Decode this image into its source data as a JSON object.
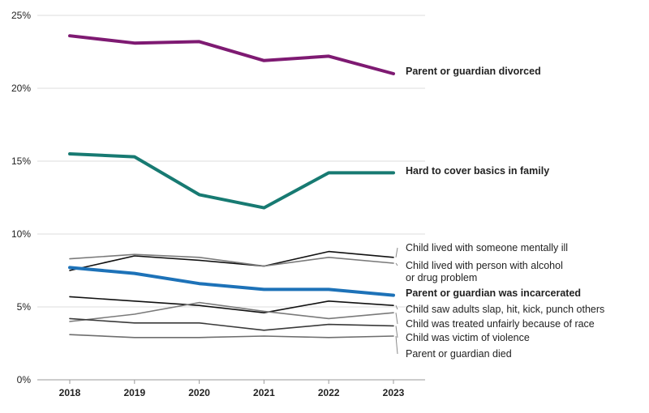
{
  "chart_data": {
    "type": "line",
    "x": [
      "2018",
      "2019",
      "2020",
      "2021",
      "2022",
      "2023"
    ],
    "ylim": [
      0,
      25
    ],
    "yticks": [
      {
        "value": 0,
        "label": "0%"
      },
      {
        "value": 5,
        "label": "5%"
      },
      {
        "value": 10,
        "label": "10%"
      },
      {
        "value": 15,
        "label": "15%"
      },
      {
        "value": 20,
        "label": "20%"
      },
      {
        "value": 25,
        "label": "25%"
      }
    ],
    "grid": true,
    "series": [
      {
        "name": "Parent or guardian divorced",
        "values": [
          23.6,
          23.1,
          23.2,
          21.9,
          22.2,
          21.0
        ],
        "color": "#7e1a72",
        "emphasis": true
      },
      {
        "name": "Hard to cover basics in family",
        "values": [
          15.5,
          15.3,
          12.7,
          11.8,
          14.2,
          14.2
        ],
        "color": "#177a72",
        "emphasis": true
      },
      {
        "name": "Child lived with someone mentally ill",
        "values": [
          7.5,
          8.5,
          8.2,
          7.8,
          8.8,
          8.4
        ],
        "color": "#111111",
        "emphasis": false
      },
      {
        "name": "Child lived with person with alcohol or drug problem",
        "values": [
          8.3,
          8.6,
          8.4,
          7.8,
          8.4,
          8.0
        ],
        "color": "#7a7a7a",
        "emphasis": false
      },
      {
        "name": "Parent or guardian was incarcerated",
        "values": [
          7.7,
          7.3,
          6.6,
          6.2,
          6.2,
          5.8
        ],
        "color": "#1d72b8",
        "emphasis": true
      },
      {
        "name": "Child saw adults slap, hit, kick, punch others",
        "values": [
          5.7,
          5.4,
          5.1,
          4.6,
          5.4,
          5.1
        ],
        "color": "#111111",
        "emphasis": false
      },
      {
        "name": "Child was treated unfairly because of race",
        "values": [
          4.0,
          4.5,
          5.3,
          4.7,
          4.2,
          4.6
        ],
        "color": "#7a7a7a",
        "emphasis": false
      },
      {
        "name": "Child was victim of violence",
        "values": [
          4.2,
          3.9,
          3.9,
          3.4,
          3.8,
          3.7
        ],
        "color": "#3a3a3a",
        "emphasis": false
      },
      {
        "name": "Parent or guardian died",
        "values": [
          3.1,
          2.9,
          2.9,
          3.0,
          2.9,
          3.0
        ],
        "color": "#6e6e6e",
        "emphasis": false
      }
    ],
    "annotations": [
      {
        "series": "Parent or guardian divorced",
        "lines": [
          "Parent or guardian divorced"
        ]
      },
      {
        "series": "Hard to cover basics in family",
        "lines": [
          "Hard to cover basics in family"
        ]
      },
      {
        "series": "Child lived with someone mentally ill",
        "lines": [
          "Child lived with someone mentally ill"
        ]
      },
      {
        "series": "Child lived with person with alcohol or drug problem",
        "lines": [
          "Child lived with person with alcohol",
          "or drug problem"
        ]
      },
      {
        "series": "Parent or guardian was incarcerated",
        "lines": [
          "Parent or guardian was incarcerated"
        ]
      },
      {
        "series": "Child saw adults slap, hit, kick, punch others",
        "lines": [
          "Child saw adults slap, hit, kick, punch others"
        ]
      },
      {
        "series": "Child was treated unfairly because of race",
        "lines": [
          "Child was treated unfairly because of race"
        ]
      },
      {
        "series": "Child was victim of violence",
        "lines": [
          "Child was victim of violence"
        ]
      },
      {
        "series": "Parent or guardian died",
        "lines": [
          "Parent or guardian died"
        ]
      }
    ]
  }
}
